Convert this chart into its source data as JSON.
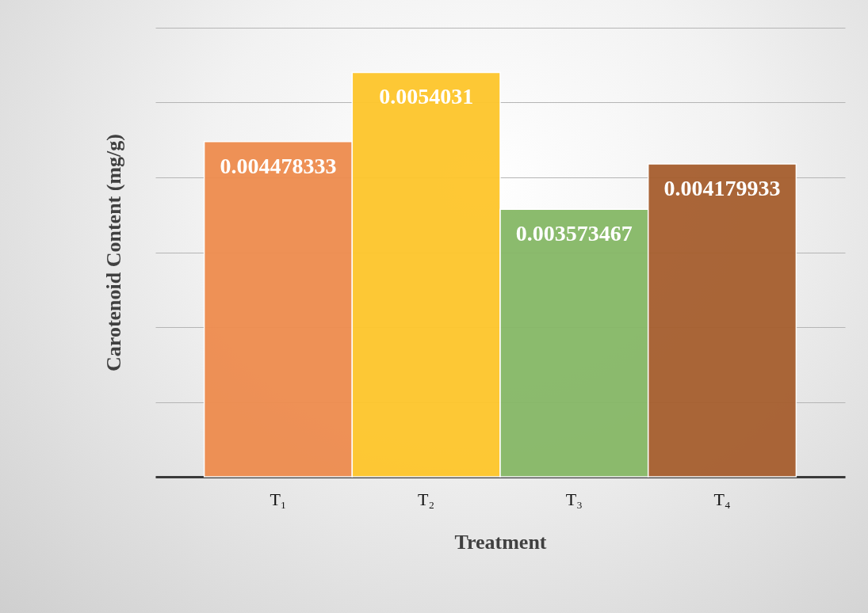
{
  "chart_data": {
    "type": "bar",
    "xlabel": "Treatment",
    "ylabel": "Carotenoid Content (mg/g)",
    "categories": [
      "T₁",
      "T₂",
      "T₃",
      "T₄"
    ],
    "values": [
      0.004478333,
      0.0054031,
      0.003573467,
      0.004179933
    ],
    "colors": [
      "#ee8c4e",
      "#fec62b",
      "#86b866",
      "#a65e2e"
    ],
    "ylim": [
      0,
      0.006
    ],
    "yticks": [
      {
        "value": 0,
        "label": null
      },
      {
        "value": 0.001,
        "label": null
      },
      {
        "value": 0.002,
        "label": null
      },
      {
        "value": 0.003,
        "label": null
      },
      {
        "value": 0.004,
        "label": null
      },
      {
        "value": 0.005,
        "label": null
      },
      {
        "value": 0.006,
        "label": null
      }
    ],
    "grid": "y",
    "tick_labels": "x",
    "data_labels": true
  }
}
